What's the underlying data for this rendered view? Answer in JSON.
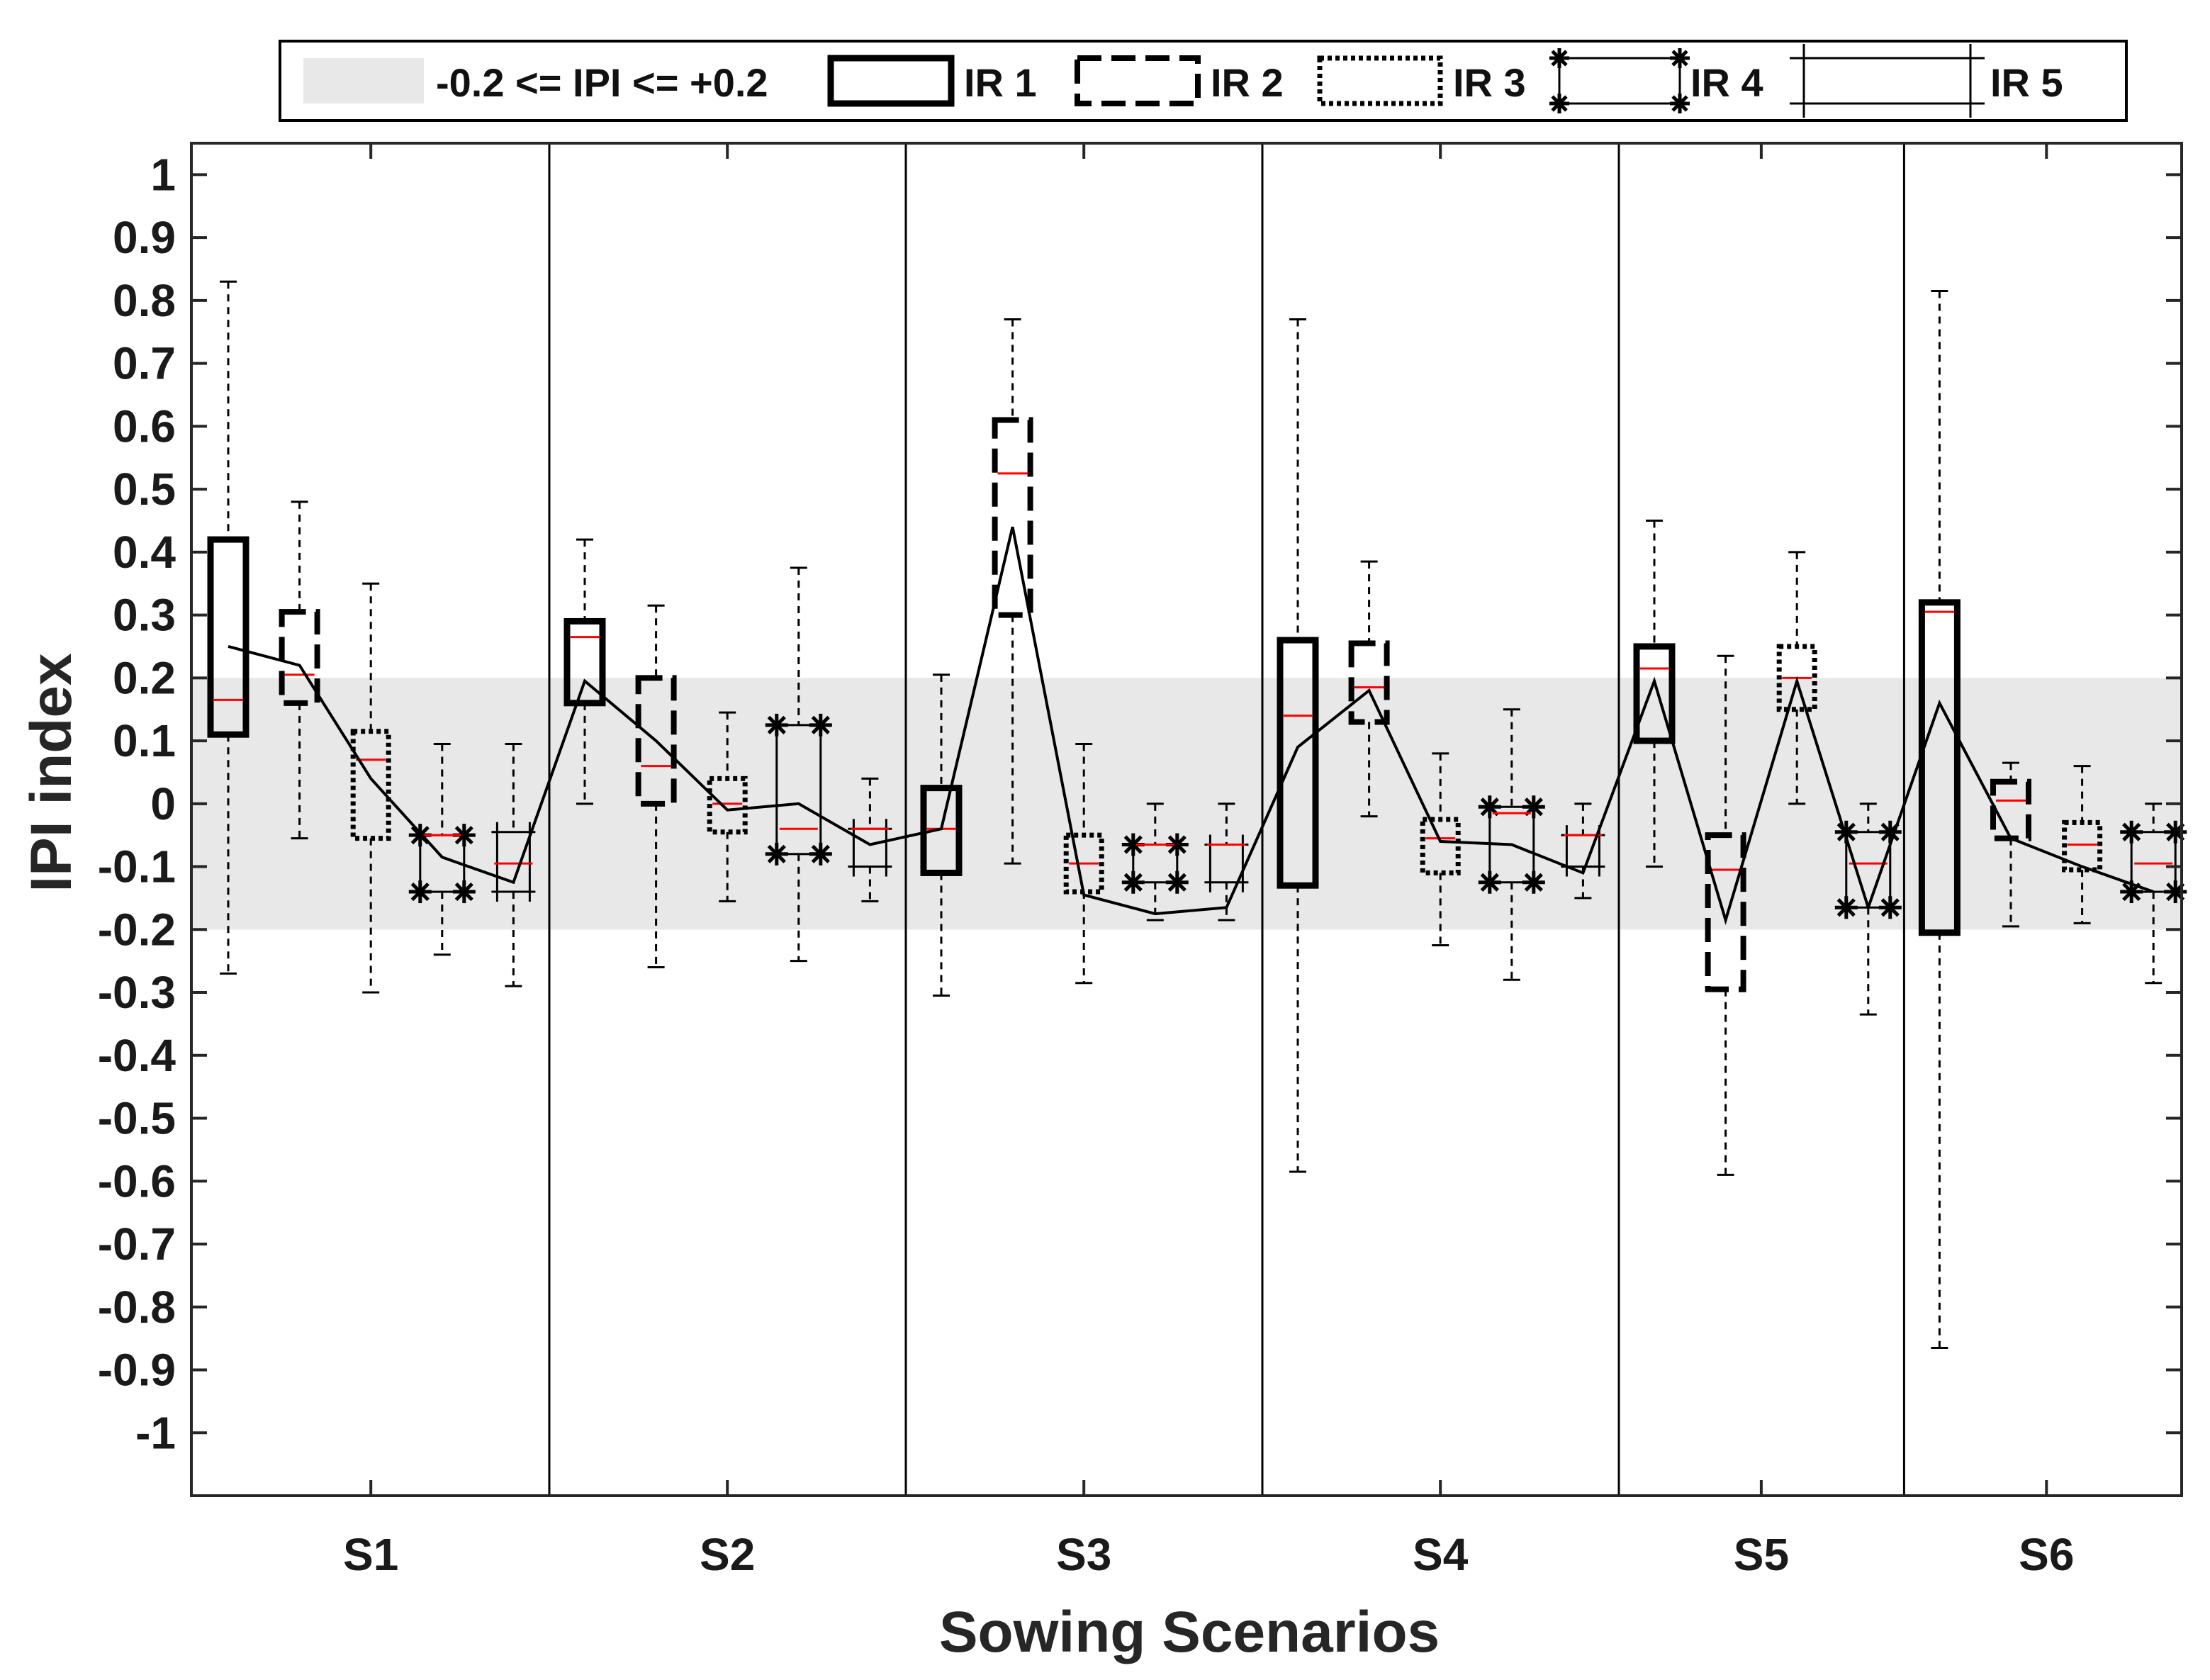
{
  "chart_data": {
    "type": "box",
    "xlabel": "Sowing Scenarios",
    "ylabel": "IPI index",
    "ylim": [
      -1.1,
      1.05
    ],
    "yticks": [
      1,
      0.9,
      0.8,
      0.7,
      0.6,
      0.5,
      0.4,
      0.3,
      0.2,
      0.1,
      0,
      -0.1,
      -0.2,
      -0.3,
      -0.4,
      -0.5,
      -0.6,
      -0.7,
      -0.8,
      -0.9,
      -1
    ],
    "ytick_labels": [
      "1",
      "0.9",
      "0.8",
      "0.7",
      "0.6",
      "0.5",
      "0.4",
      "0.3",
      "0.2",
      "0.1",
      "0",
      "-0.1",
      "-0.2",
      "-0.3",
      "-0.4",
      "-0.5",
      "-0.6",
      "-0.7",
      "-0.8",
      "-0.9",
      "-1"
    ],
    "band": {
      "low": -0.2,
      "high": 0.2,
      "label": "-0.2 <= IPI <= +0.2",
      "color": "#e8e8e8"
    },
    "median_color": "#ff0000",
    "legend": [
      "IR 1",
      "IR 2",
      "IR 3",
      "IR 4",
      "IR 5"
    ],
    "groups": [
      {
        "label": "S1",
        "boxes": [
          {
            "series": "IR 1",
            "whisker_low": -0.27,
            "q1": 0.11,
            "median": 0.165,
            "q3": 0.42,
            "whisker_high": 0.83,
            "mean": 0.25
          },
          {
            "series": "IR 2",
            "whisker_low": -0.055,
            "q1": 0.16,
            "median": 0.205,
            "q3": 0.305,
            "whisker_high": 0.48,
            "mean": 0.22
          },
          {
            "series": "IR 3",
            "whisker_low": -0.3,
            "q1": -0.055,
            "median": 0.07,
            "q3": 0.115,
            "whisker_high": 0.35,
            "mean": 0.04
          },
          {
            "series": "IR 4",
            "whisker_low": -0.24,
            "q1": -0.14,
            "median": -0.05,
            "q3": -0.05,
            "whisker_high": 0.095,
            "mean": -0.085
          },
          {
            "series": "IR 5",
            "whisker_low": -0.29,
            "q1": -0.14,
            "median": -0.095,
            "q3": -0.045,
            "whisker_high": 0.095,
            "mean": -0.125
          }
        ]
      },
      {
        "label": "S2",
        "boxes": [
          {
            "series": "IR 1",
            "whisker_low": 0.0,
            "q1": 0.16,
            "median": 0.265,
            "q3": 0.29,
            "whisker_high": 0.42,
            "mean": 0.195
          },
          {
            "series": "IR 2",
            "whisker_low": -0.26,
            "q1": 0.0,
            "median": 0.06,
            "q3": 0.2,
            "whisker_high": 0.315,
            "mean": 0.1
          },
          {
            "series": "IR 3",
            "whisker_low": -0.155,
            "q1": -0.045,
            "median": 0.0,
            "q3": 0.04,
            "whisker_high": 0.145,
            "mean": -0.01
          },
          {
            "series": "IR 4",
            "whisker_low": -0.25,
            "q1": -0.08,
            "median": -0.04,
            "q3": 0.125,
            "whisker_high": 0.375,
            "mean": 0.0
          },
          {
            "series": "IR 5",
            "whisker_low": -0.155,
            "q1": -0.1,
            "median": -0.04,
            "q3": -0.04,
            "whisker_high": 0.04,
            "mean": -0.065
          }
        ]
      },
      {
        "label": "S3",
        "boxes": [
          {
            "series": "IR 1",
            "whisker_low": -0.305,
            "q1": -0.11,
            "median": -0.04,
            "q3": 0.025,
            "whisker_high": 0.205,
            "mean": -0.04
          },
          {
            "series": "IR 2",
            "whisker_low": -0.095,
            "q1": 0.3,
            "median": 0.525,
            "q3": 0.61,
            "whisker_high": 0.77,
            "mean": 0.44
          },
          {
            "series": "IR 3",
            "whisker_low": -0.285,
            "q1": -0.14,
            "median": -0.095,
            "q3": -0.05,
            "whisker_high": 0.095,
            "mean": -0.145
          },
          {
            "series": "IR 4",
            "whisker_low": -0.185,
            "q1": -0.125,
            "median": -0.065,
            "q3": -0.065,
            "whisker_high": 0.0,
            "mean": -0.175
          },
          {
            "series": "IR 5",
            "whisker_low": -0.185,
            "q1": -0.125,
            "median": -0.065,
            "q3": -0.065,
            "whisker_high": 0.0,
            "mean": -0.165
          }
        ]
      },
      {
        "label": "S4",
        "boxes": [
          {
            "series": "IR 1",
            "whisker_low": -0.585,
            "q1": -0.13,
            "median": 0.14,
            "q3": 0.26,
            "whisker_high": 0.77,
            "mean": 0.09
          },
          {
            "series": "IR 2",
            "whisker_low": -0.02,
            "q1": 0.13,
            "median": 0.185,
            "q3": 0.255,
            "whisker_high": 0.385,
            "mean": 0.18
          },
          {
            "series": "IR 3",
            "whisker_low": -0.225,
            "q1": -0.11,
            "median": -0.055,
            "q3": -0.025,
            "whisker_high": 0.08,
            "mean": -0.06
          },
          {
            "series": "IR 4",
            "whisker_low": -0.28,
            "q1": -0.125,
            "median": -0.015,
            "q3": -0.005,
            "whisker_high": 0.15,
            "mean": -0.065
          },
          {
            "series": "IR 5",
            "whisker_low": -0.15,
            "q1": -0.1,
            "median": -0.05,
            "q3": -0.05,
            "whisker_high": 0.0,
            "mean": -0.11
          }
        ]
      },
      {
        "label": "S5",
        "boxes": [
          {
            "series": "IR 1",
            "whisker_low": -0.1,
            "q1": 0.1,
            "median": 0.215,
            "q3": 0.25,
            "whisker_high": 0.45,
            "mean": 0.195
          },
          {
            "series": "IR 2",
            "whisker_low": -0.59,
            "q1": -0.295,
            "median": -0.105,
            "q3": -0.05,
            "whisker_high": 0.235,
            "mean": -0.185
          },
          {
            "series": "IR 3",
            "whisker_low": 0.0,
            "q1": 0.15,
            "median": 0.2,
            "q3": 0.25,
            "whisker_high": 0.4,
            "mean": 0.195
          },
          {
            "series": "IR 4",
            "whisker_low": -0.335,
            "q1": -0.165,
            "median": -0.095,
            "q3": -0.045,
            "whisker_high": 0.0,
            "mean": -0.165
          }
        ]
      },
      {
        "label": "S6",
        "boxes": [
          {
            "series": "IR 1",
            "whisker_low": -0.865,
            "q1": -0.205,
            "median": 0.305,
            "q3": 0.32,
            "whisker_high": 0.815,
            "mean": 0.16
          },
          {
            "series": "IR 2",
            "whisker_low": -0.195,
            "q1": -0.055,
            "median": 0.005,
            "q3": 0.035,
            "whisker_high": 0.065,
            "mean": -0.055
          },
          {
            "series": "IR 3",
            "whisker_low": -0.19,
            "q1": -0.105,
            "median": -0.065,
            "q3": -0.03,
            "whisker_high": 0.06,
            "mean": -0.1
          },
          {
            "series": "IR 4",
            "whisker_low": -0.285,
            "q1": -0.14,
            "median": -0.095,
            "q3": -0.045,
            "whisker_high": 0.0,
            "mean": -0.14
          }
        ]
      }
    ]
  }
}
